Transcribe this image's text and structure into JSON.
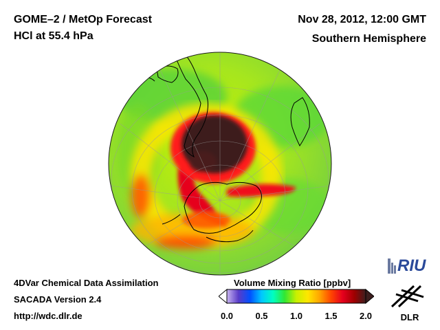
{
  "header": {
    "title_line1": "GOME–2 / MetOp Forecast",
    "title_line2": "HCl at 55.4 hPa",
    "datetime": "Nov 28, 2012, 12:00 GMT",
    "region": "Southern Hemisphere"
  },
  "footer": {
    "line1": "4DVar Chemical Data Assimilation",
    "line2": "SACADA Version 2.4",
    "url": "http://wdc.dlr.de"
  },
  "colorbar": {
    "title": "Volume Mixing Ratio [ppbv]",
    "tick_labels": [
      "0.0",
      "0.5",
      "1.0",
      "1.5",
      "2.0"
    ],
    "min": 0.0,
    "max": 2.0,
    "colors": [
      "#c8b4f0",
      "#5a3cc8",
      "#0050ff",
      "#00c8ff",
      "#00ffc0",
      "#32e632",
      "#c8f000",
      "#ffe600",
      "#ffa500",
      "#ff4600",
      "#e6001e",
      "#a00000",
      "#3c1e1e"
    ]
  },
  "logos": {
    "riu_text": "RIU",
    "dlr_text": "DLR"
  },
  "colors": {
    "background": "#ffffff",
    "globe_base": "#9be03c",
    "ozone_hole_core": "#3c1e1e",
    "high_band": "#e6001e",
    "coastline": "#000000"
  }
}
